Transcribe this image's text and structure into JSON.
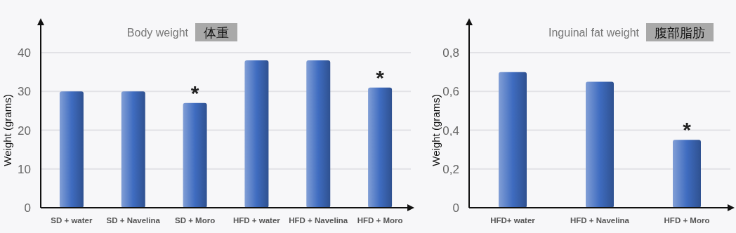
{
  "chart_data": [
    {
      "type": "bar",
      "title": "Body weight",
      "subtitle": "体重",
      "ylabel": "Weight (grams)",
      "categories": [
        "SD + water",
        "SD + Navelina",
        "SD + Moro",
        "HFD + water",
        "HFD + Navelina",
        "HFD + Moro"
      ],
      "values": [
        30,
        30,
        27,
        38,
        38,
        31
      ],
      "color": "#3f6cc0",
      "ylim": [
        0,
        40
      ],
      "yticks": [
        0,
        10,
        20,
        30,
        40
      ],
      "grid": "y",
      "annotations": [
        {
          "text": "*",
          "x": "SD + Moro",
          "y": 27
        },
        {
          "text": "*",
          "x": "HFD + Moro",
          "y": 31
        }
      ]
    },
    {
      "type": "bar",
      "title": "Inguinal fat weight",
      "subtitle": "腹部脂肪",
      "ylabel": "Weight (grams)",
      "categories": [
        "HFD+ water",
        "HFD + Navelina",
        "HFD + Moro"
      ],
      "values": [
        0.7,
        0.65,
        0.35
      ],
      "color": "#3f6cc0",
      "ylim": [
        0,
        0.8
      ],
      "yticks": [
        0,
        {
          "value": 0.2,
          "label": "0,2"
        },
        {
          "value": 0.4,
          "label": "0,4"
        },
        {
          "value": 0.6,
          "label": "0,6"
        },
        {
          "value": 0.8,
          "label": "0,8"
        }
      ],
      "grid": "y",
      "annotations": [
        {
          "text": "*",
          "x": "HFD + Moro",
          "y": 0.35
        }
      ]
    }
  ]
}
